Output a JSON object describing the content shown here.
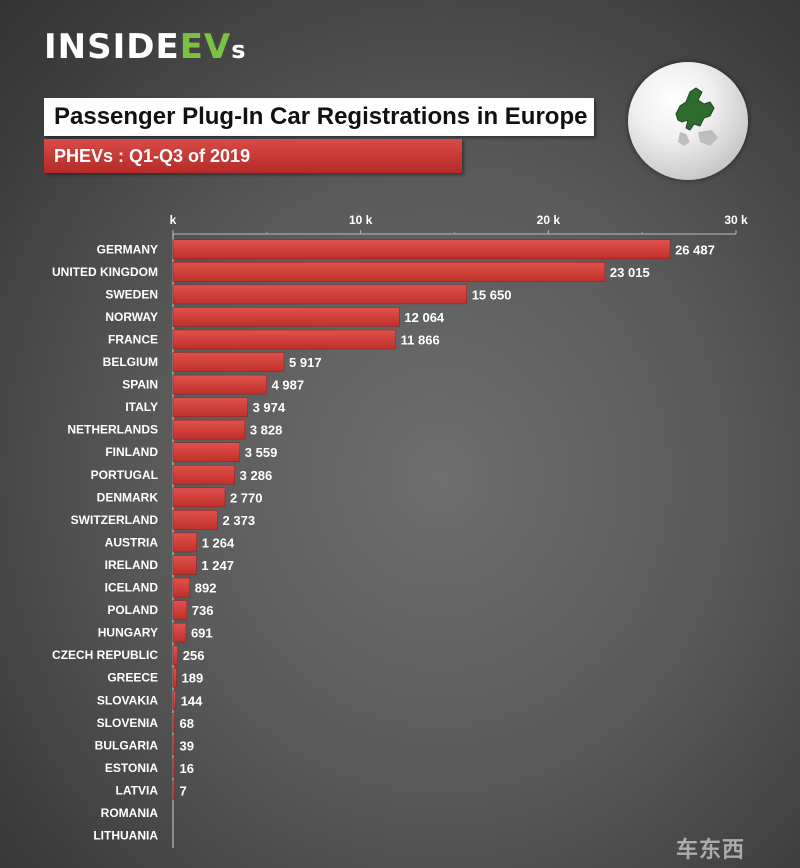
{
  "brand": {
    "part1": "INSIDE",
    "part2": "EV",
    "part3": "s",
    "accent": "#7cc242"
  },
  "title": "Passenger Plug-In Car Registrations in Europe",
  "subtitle": "PHEVs : Q1-Q3 of 2019",
  "watermark": "车东西",
  "colors": {
    "bar": "#c0302b",
    "bar_light": "#e2524c",
    "text": "#ffffff"
  },
  "chart_data": {
    "type": "bar",
    "orientation": "horizontal",
    "categories": [
      "GERMANY",
      "UNITED KINGDOM",
      "SWEDEN",
      "NORWAY",
      "FRANCE",
      "BELGIUM",
      "SPAIN",
      "ITALY",
      "NETHERLANDS",
      "FINLAND",
      "PORTUGAL",
      "DENMARK",
      "SWITZERLAND",
      "AUSTRIA",
      "IRELAND",
      "ICELAND",
      "POLAND",
      "HUNGARY",
      "CZECH REPUBLIC",
      "GREECE",
      "SLOVAKIA",
      "SLOVENIA",
      "BULGARIA",
      "ESTONIA",
      "LATVIA",
      "ROMANIA",
      "LITHUANIA"
    ],
    "values": [
      26487,
      23015,
      15650,
      12064,
      11866,
      5917,
      4987,
      3974,
      3828,
      3559,
      3286,
      2770,
      2373,
      1264,
      1247,
      892,
      736,
      691,
      256,
      189,
      144,
      68,
      39,
      16,
      7,
      null,
      null
    ],
    "value_labels": [
      "26 487",
      "23 015",
      "15 650",
      "12 064",
      "11 866",
      "5 917",
      "4 987",
      "3 974",
      "3 828",
      "3 559",
      "3 286",
      "2 770",
      "2 373",
      "1 264",
      "1 247",
      "892",
      "736",
      "691",
      "256",
      "189",
      "144",
      "68",
      "39",
      "16",
      "7",
      "",
      ""
    ],
    "xlim": [
      0,
      30000
    ],
    "ticks": [
      {
        "value": 0,
        "label": "k"
      },
      {
        "value": 10000,
        "label": "10 k"
      },
      {
        "value": 20000,
        "label": "20 k"
      },
      {
        "value": 30000,
        "label": "30 k"
      }
    ],
    "minor_ticks": [
      5000,
      15000,
      25000
    ],
    "axis_position": "top",
    "grid": false,
    "legend": "none"
  }
}
